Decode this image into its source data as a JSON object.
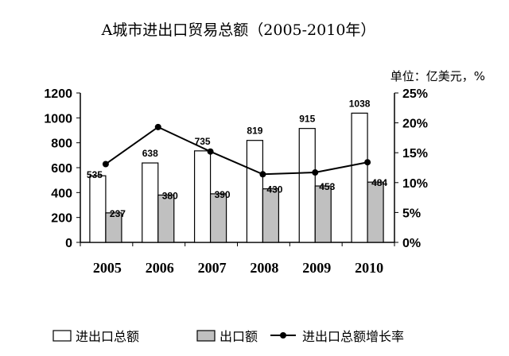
{
  "chart_data": {
    "type": "bar",
    "title": "A城市进出口贸易总额（2005-2010年）",
    "unit_label": "单位：亿美元，%",
    "categories": [
      "2005",
      "2006",
      "2007",
      "2008",
      "2009",
      "2010"
    ],
    "series": [
      {
        "name": "进出口总额",
        "kind": "bar",
        "color": "#ffffff",
        "values": [
          535,
          638,
          735,
          819,
          915,
          1038
        ],
        "labels": [
          "535",
          "638",
          "735",
          "819",
          "915",
          "1038"
        ]
      },
      {
        "name": "出口额",
        "kind": "bar",
        "color": "#c0c0c0",
        "values": [
          237,
          380,
          390,
          430,
          453,
          484
        ],
        "labels": [
          "237",
          "380",
          "390",
          "430",
          "453",
          "484"
        ]
      },
      {
        "name": "进出口总额增长率",
        "kind": "line",
        "axis": "right",
        "color": "#000000",
        "values": [
          13.1,
          19.3,
          15.2,
          11.4,
          11.7,
          13.4
        ]
      }
    ],
    "y_left": {
      "min": 0,
      "max": 1200,
      "ticks": [
        "0",
        "200",
        "400",
        "600",
        "800",
        "1000",
        "1200"
      ]
    },
    "y_right": {
      "min": 0,
      "max": 25,
      "ticks": [
        "0%",
        "5%",
        "10%",
        "15%",
        "20%",
        "25%"
      ]
    },
    "grid": false,
    "legend_position": "bottom"
  }
}
